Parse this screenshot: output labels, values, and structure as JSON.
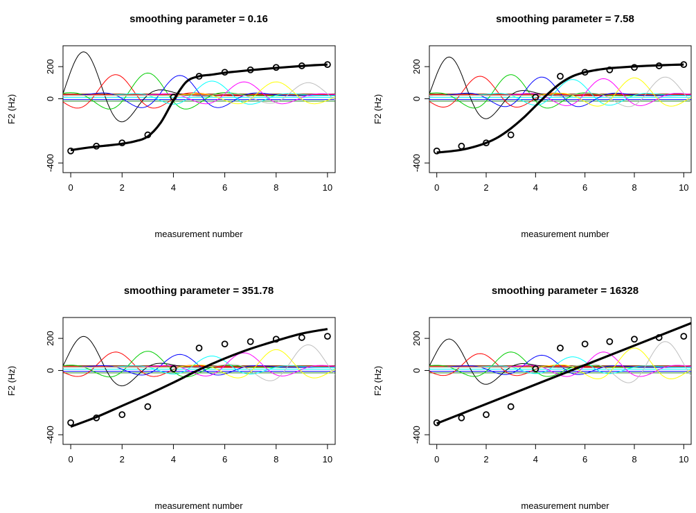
{
  "figure": {
    "panels": [
      {
        "title": "smoothing parameter = 0.16"
      },
      {
        "title": "smoothing parameter = 7.58"
      },
      {
        "title": "smoothing parameter = 351.78"
      },
      {
        "title": "smoothing parameter = 16328"
      }
    ]
  },
  "chart_data": [
    {
      "type": "line",
      "title": "smoothing parameter = 0.16",
      "xlabel": "measurement number",
      "ylabel": "F2 (Hz)",
      "xlim": [
        -0.3,
        10.3
      ],
      "ylim": [
        -460,
        330
      ],
      "xticks": [
        0,
        2,
        4,
        6,
        8,
        10
      ],
      "yticks": [
        -400,
        0,
        200
      ],
      "ytick_labels": [
        "-400",
        "0",
        "200"
      ],
      "points": {
        "x": [
          0,
          1,
          2,
          3,
          4,
          5,
          6,
          7,
          8,
          9,
          10
        ],
        "y": [
          -325,
          -295,
          -275,
          -225,
          10,
          140,
          165,
          180,
          195,
          205,
          213
        ]
      },
      "fit": {
        "x": [
          0,
          0.5,
          1,
          1.5,
          2,
          2.5,
          3,
          3.5,
          4,
          4.5,
          5,
          5.5,
          6,
          6.5,
          7,
          7.5,
          8,
          8.5,
          9,
          9.5,
          10
        ],
        "y": [
          -320,
          -308,
          -298,
          -290,
          -280,
          -265,
          -235,
          -150,
          -10,
          105,
          140,
          150,
          162,
          170,
          178,
          185,
          192,
          198,
          204,
          209,
          213
        ]
      },
      "basis_colors": [
        "#000000",
        "#ff0000",
        "#00cd00",
        "#0000ff",
        "#00ffff",
        "#ff00ff",
        "#ffff00",
        "#bebebe"
      ],
      "basis_amplitudes": [
        170,
        130,
        140,
        125,
        90,
        85,
        85,
        80
      ]
    },
    {
      "type": "line",
      "title": "smoothing parameter = 7.58",
      "xlabel": "measurement number",
      "ylabel": "F2 (Hz)",
      "xlim": [
        -0.3,
        10.3
      ],
      "ylim": [
        -460,
        330
      ],
      "xticks": [
        0,
        2,
        4,
        6,
        8,
        10
      ],
      "yticks": [
        -400,
        0,
        200
      ],
      "ytick_labels": [
        "-400",
        "0",
        "200"
      ],
      "points": {
        "x": [
          0,
          1,
          2,
          3,
          4,
          5,
          6,
          7,
          8,
          9,
          10
        ],
        "y": [
          -325,
          -295,
          -275,
          -225,
          10,
          140,
          165,
          180,
          195,
          205,
          213
        ]
      },
      "fit": {
        "x": [
          0,
          0.5,
          1,
          1.5,
          2,
          2.5,
          3,
          3.5,
          4,
          4.5,
          5,
          5.5,
          6,
          6.5,
          7,
          7.5,
          8,
          8.5,
          9,
          9.5,
          10
        ],
        "y": [
          -335,
          -328,
          -318,
          -300,
          -275,
          -238,
          -185,
          -120,
          -45,
          30,
          95,
          140,
          165,
          180,
          190,
          196,
          201,
          205,
          208,
          211,
          213
        ]
      },
      "basis_colors": [
        "#000000",
        "#ff0000",
        "#00cd00",
        "#0000ff",
        "#00ffff",
        "#ff00ff",
        "#ffff00",
        "#bebebe"
      ],
      "basis_amplitudes": [
        150,
        120,
        130,
        115,
        100,
        105,
        110,
        115
      ]
    },
    {
      "type": "line",
      "title": "smoothing parameter = 351.78",
      "xlabel": "measurement number",
      "ylabel": "F2 (Hz)",
      "xlim": [
        -0.3,
        10.3
      ],
      "ylim": [
        -460,
        330
      ],
      "xticks": [
        0,
        2,
        4,
        6,
        8,
        10
      ],
      "yticks": [
        -400,
        0,
        200
      ],
      "ytick_labels": [
        "-400",
        "0",
        "200"
      ],
      "points": {
        "x": [
          0,
          1,
          2,
          3,
          4,
          5,
          6,
          7,
          8,
          9,
          10
        ],
        "y": [
          -325,
          -295,
          -275,
          -225,
          10,
          140,
          165,
          180,
          195,
          205,
          213
        ]
      },
      "fit": {
        "x": [
          0,
          1,
          2,
          3,
          4,
          5,
          6,
          7,
          8,
          9,
          10
        ],
        "y": [
          -350,
          -290,
          -220,
          -150,
          -75,
          5,
          75,
          135,
          185,
          230,
          258
        ]
      },
      "basis_colors": [
        "#000000",
        "#ff0000",
        "#00cd00",
        "#0000ff",
        "#00ffff",
        "#ff00ff",
        "#ffff00",
        "#bebebe"
      ],
      "basis_amplitudes": [
        120,
        95,
        100,
        80,
        70,
        90,
        110,
        140
      ]
    },
    {
      "type": "line",
      "title": "smoothing parameter = 16328",
      "xlabel": "measurement number",
      "ylabel": "F2 (Hz)",
      "xlim": [
        -0.3,
        10.3
      ],
      "ylim": [
        -460,
        330
      ],
      "xticks": [
        0,
        2,
        4,
        6,
        8,
        10
      ],
      "yticks": [
        -400,
        0,
        200
      ],
      "ytick_labels": [
        "-400",
        "0",
        "200"
      ],
      "points": {
        "x": [
          0,
          1,
          2,
          3,
          4,
          5,
          6,
          7,
          8,
          9,
          10
        ],
        "y": [
          -325,
          -295,
          -275,
          -225,
          10,
          140,
          165,
          180,
          195,
          205,
          213
        ]
      },
      "fit": {
        "x": [
          0,
          10.3
        ],
        "y": [
          -330,
          295
        ]
      },
      "basis_colors": [
        "#000000",
        "#ff0000",
        "#00cd00",
        "#0000ff",
        "#00ffff",
        "#ff00ff",
        "#ffff00",
        "#bebebe"
      ],
      "basis_amplitudes": [
        110,
        85,
        95,
        75,
        65,
        95,
        120,
        160
      ]
    }
  ]
}
